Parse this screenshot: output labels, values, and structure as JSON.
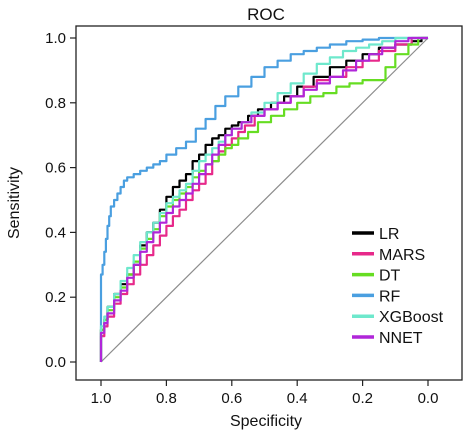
{
  "chart_data": {
    "type": "line",
    "title": "ROC",
    "xlabel": "Specificity",
    "ylabel": "Sensitivity",
    "xlim": [
      1.0,
      0.0
    ],
    "ylim": [
      0.0,
      1.0
    ],
    "x_axis_reversed": true,
    "grid": false,
    "legend_position": "bottom-right",
    "x_ticks": [
      "1.0",
      "0.8",
      "0.6",
      "0.4",
      "0.2",
      "0.0"
    ],
    "y_ticks": [
      "0.0",
      "0.2",
      "0.4",
      "0.6",
      "0.8",
      "1.0"
    ],
    "x_tick_values": [
      1.0,
      0.8,
      0.6,
      0.4,
      0.2,
      0.0
    ],
    "y_tick_values": [
      0.0,
      0.2,
      0.4,
      0.6,
      0.8,
      1.0
    ],
    "reference_line": {
      "x": [
        1.0,
        0.0
      ],
      "y": [
        0.0,
        1.0
      ],
      "color": "#8c8c8c"
    },
    "series": [
      {
        "name": "LR",
        "color": "#000000",
        "x": [
          1.0,
          0.99,
          0.98,
          0.96,
          0.94,
          0.92,
          0.9,
          0.88,
          0.86,
          0.84,
          0.82,
          0.8,
          0.78,
          0.76,
          0.74,
          0.72,
          0.7,
          0.68,
          0.66,
          0.64,
          0.62,
          0.6,
          0.58,
          0.55,
          0.52,
          0.48,
          0.44,
          0.4,
          0.35,
          0.3,
          0.25,
          0.2,
          0.15,
          0.1,
          0.05,
          0.02,
          0.0
        ],
        "y": [
          0.0,
          0.1,
          0.13,
          0.17,
          0.21,
          0.24,
          0.27,
          0.3,
          0.36,
          0.4,
          0.43,
          0.47,
          0.51,
          0.54,
          0.56,
          0.58,
          0.62,
          0.64,
          0.67,
          0.69,
          0.7,
          0.72,
          0.73,
          0.74,
          0.76,
          0.78,
          0.8,
          0.82,
          0.85,
          0.88,
          0.91,
          0.93,
          0.95,
          0.97,
          0.98,
          0.99,
          1.0
        ]
      },
      {
        "name": "MARS",
        "color": "#e7298a",
        "x": [
          1.0,
          0.99,
          0.98,
          0.96,
          0.94,
          0.92,
          0.9,
          0.88,
          0.86,
          0.84,
          0.82,
          0.8,
          0.78,
          0.76,
          0.74,
          0.72,
          0.7,
          0.68,
          0.66,
          0.64,
          0.62,
          0.6,
          0.58,
          0.56,
          0.53,
          0.5,
          0.46,
          0.42,
          0.38,
          0.34,
          0.3,
          0.25,
          0.2,
          0.15,
          0.1,
          0.05,
          0.0
        ],
        "y": [
          0.0,
          0.08,
          0.11,
          0.14,
          0.18,
          0.21,
          0.24,
          0.27,
          0.3,
          0.33,
          0.36,
          0.39,
          0.42,
          0.45,
          0.47,
          0.5,
          0.53,
          0.55,
          0.58,
          0.62,
          0.65,
          0.67,
          0.69,
          0.71,
          0.73,
          0.76,
          0.78,
          0.8,
          0.82,
          0.85,
          0.87,
          0.88,
          0.91,
          0.93,
          0.96,
          0.98,
          1.0
        ]
      },
      {
        "name": "DT",
        "color": "#66dd22",
        "x": [
          1.0,
          0.99,
          0.98,
          0.96,
          0.94,
          0.92,
          0.9,
          0.88,
          0.86,
          0.84,
          0.82,
          0.8,
          0.78,
          0.76,
          0.74,
          0.72,
          0.7,
          0.68,
          0.66,
          0.64,
          0.62,
          0.6,
          0.58,
          0.55,
          0.52,
          0.48,
          0.44,
          0.4,
          0.36,
          0.32,
          0.28,
          0.24,
          0.2,
          0.16,
          0.13,
          0.1,
          0.06,
          0.03,
          0.0
        ],
        "y": [
          0.0,
          0.1,
          0.13,
          0.16,
          0.2,
          0.23,
          0.27,
          0.31,
          0.35,
          0.38,
          0.41,
          0.45,
          0.48,
          0.5,
          0.52,
          0.54,
          0.57,
          0.59,
          0.61,
          0.62,
          0.64,
          0.66,
          0.67,
          0.69,
          0.71,
          0.74,
          0.76,
          0.78,
          0.8,
          0.82,
          0.83,
          0.85,
          0.86,
          0.87,
          0.87,
          0.91,
          0.95,
          0.98,
          1.0
        ]
      },
      {
        "name": "RF",
        "color": "#4a9fe0",
        "x": [
          1.0,
          1.0,
          0.995,
          0.99,
          0.985,
          0.98,
          0.975,
          0.97,
          0.96,
          0.95,
          0.94,
          0.93,
          0.92,
          0.9,
          0.88,
          0.86,
          0.84,
          0.82,
          0.8,
          0.77,
          0.74,
          0.71,
          0.68,
          0.65,
          0.62,
          0.58,
          0.54,
          0.5,
          0.46,
          0.42,
          0.38,
          0.34,
          0.3,
          0.25,
          0.2,
          0.15,
          0.1,
          0.05,
          0.0
        ],
        "y": [
          0.0,
          0.24,
          0.27,
          0.3,
          0.34,
          0.38,
          0.42,
          0.45,
          0.48,
          0.5,
          0.52,
          0.54,
          0.56,
          0.57,
          0.58,
          0.59,
          0.6,
          0.61,
          0.62,
          0.64,
          0.66,
          0.68,
          0.72,
          0.75,
          0.79,
          0.82,
          0.85,
          0.88,
          0.91,
          0.93,
          0.95,
          0.96,
          0.97,
          0.98,
          0.99,
          0.995,
          1.0,
          1.0,
          1.0
        ]
      },
      {
        "name": "XGBoost",
        "color": "#6ee8cc",
        "x": [
          1.0,
          0.99,
          0.98,
          0.96,
          0.94,
          0.92,
          0.9,
          0.88,
          0.86,
          0.84,
          0.82,
          0.8,
          0.78,
          0.76,
          0.74,
          0.72,
          0.7,
          0.68,
          0.66,
          0.64,
          0.62,
          0.6,
          0.57,
          0.54,
          0.5,
          0.46,
          0.42,
          0.38,
          0.34,
          0.3,
          0.26,
          0.22,
          0.18,
          0.14,
          0.1,
          0.06,
          0.02,
          0.0
        ],
        "y": [
          0.0,
          0.11,
          0.14,
          0.17,
          0.21,
          0.25,
          0.29,
          0.33,
          0.37,
          0.4,
          0.43,
          0.46,
          0.49,
          0.51,
          0.53,
          0.55,
          0.59,
          0.62,
          0.64,
          0.66,
          0.68,
          0.7,
          0.72,
          0.74,
          0.77,
          0.8,
          0.83,
          0.86,
          0.89,
          0.92,
          0.94,
          0.96,
          0.97,
          0.98,
          0.99,
          1.0,
          1.0,
          1.0
        ]
      },
      {
        "name": "NNET",
        "color": "#b026d9",
        "x": [
          1.0,
          0.99,
          0.98,
          0.96,
          0.94,
          0.92,
          0.9,
          0.88,
          0.86,
          0.84,
          0.82,
          0.8,
          0.78,
          0.76,
          0.74,
          0.72,
          0.7,
          0.68,
          0.66,
          0.64,
          0.62,
          0.6,
          0.57,
          0.54,
          0.5,
          0.46,
          0.42,
          0.38,
          0.34,
          0.3,
          0.26,
          0.22,
          0.18,
          0.14,
          0.1,
          0.06,
          0.02,
          0.0
        ],
        "y": [
          0.0,
          0.09,
          0.12,
          0.15,
          0.19,
          0.22,
          0.26,
          0.3,
          0.34,
          0.37,
          0.4,
          0.43,
          0.46,
          0.48,
          0.5,
          0.52,
          0.55,
          0.58,
          0.61,
          0.64,
          0.67,
          0.7,
          0.72,
          0.74,
          0.76,
          0.78,
          0.8,
          0.82,
          0.84,
          0.86,
          0.88,
          0.9,
          0.93,
          0.95,
          0.97,
          0.99,
          1.0,
          1.0
        ]
      }
    ]
  }
}
